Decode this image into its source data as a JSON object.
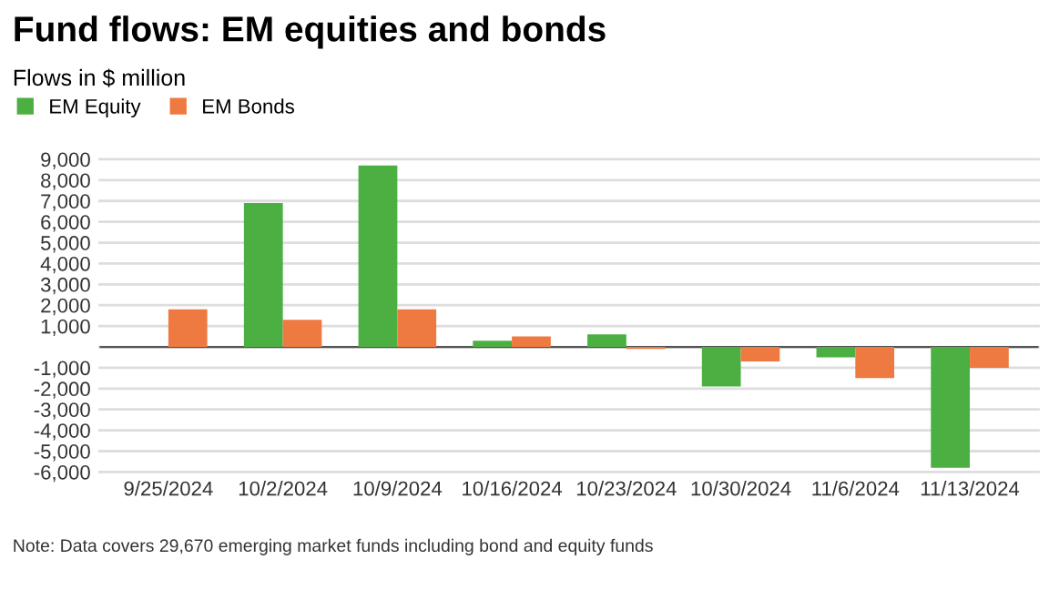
{
  "chart_data": {
    "type": "bar",
    "title": "Fund flows: EM equities and bonds",
    "subtitle": "Flows in $ million",
    "categories": [
      "9/25/2024",
      "10/2/2024",
      "10/9/2024",
      "10/16/2024",
      "10/23/2024",
      "10/30/2024",
      "11/6/2024",
      "11/13/2024"
    ],
    "series": [
      {
        "name": "EM Equity",
        "color": "#4caf42",
        "values": [
          null,
          6900,
          8700,
          300,
          600,
          -1900,
          -500,
          -5800
        ]
      },
      {
        "name": "EM Bonds",
        "color": "#ee7a42",
        "values": [
          1800,
          1300,
          1800,
          500,
          -100,
          -700,
          -1500,
          -1000
        ]
      }
    ],
    "ylim": [
      -6000,
      9000
    ],
    "yticks": [
      {
        "value": -6000,
        "label": "-6,000"
      },
      {
        "value": -5000,
        "label": "-5,000"
      },
      {
        "value": -4000,
        "label": "-4,000"
      },
      {
        "value": -3000,
        "label": "-3,000"
      },
      {
        "value": -2000,
        "label": "-2,000"
      },
      {
        "value": -1000,
        "label": "-1,000"
      },
      {
        "value": 0,
        "label": null
      },
      {
        "value": 1000,
        "label": "1,000"
      },
      {
        "value": 2000,
        "label": "2,000"
      },
      {
        "value": 3000,
        "label": "3,000"
      },
      {
        "value": 4000,
        "label": "4,000"
      },
      {
        "value": 5000,
        "label": "5,000"
      },
      {
        "value": 6000,
        "label": "6,000"
      },
      {
        "value": 7000,
        "label": "7,000"
      },
      {
        "value": 8000,
        "label": "8,000"
      },
      {
        "value": 9000,
        "label": "9,000"
      }
    ],
    "grid": "y",
    "legend": "top left",
    "annotations": [
      "Note: Data covers 29,670 emerging market funds including bond and equity funds"
    ]
  }
}
